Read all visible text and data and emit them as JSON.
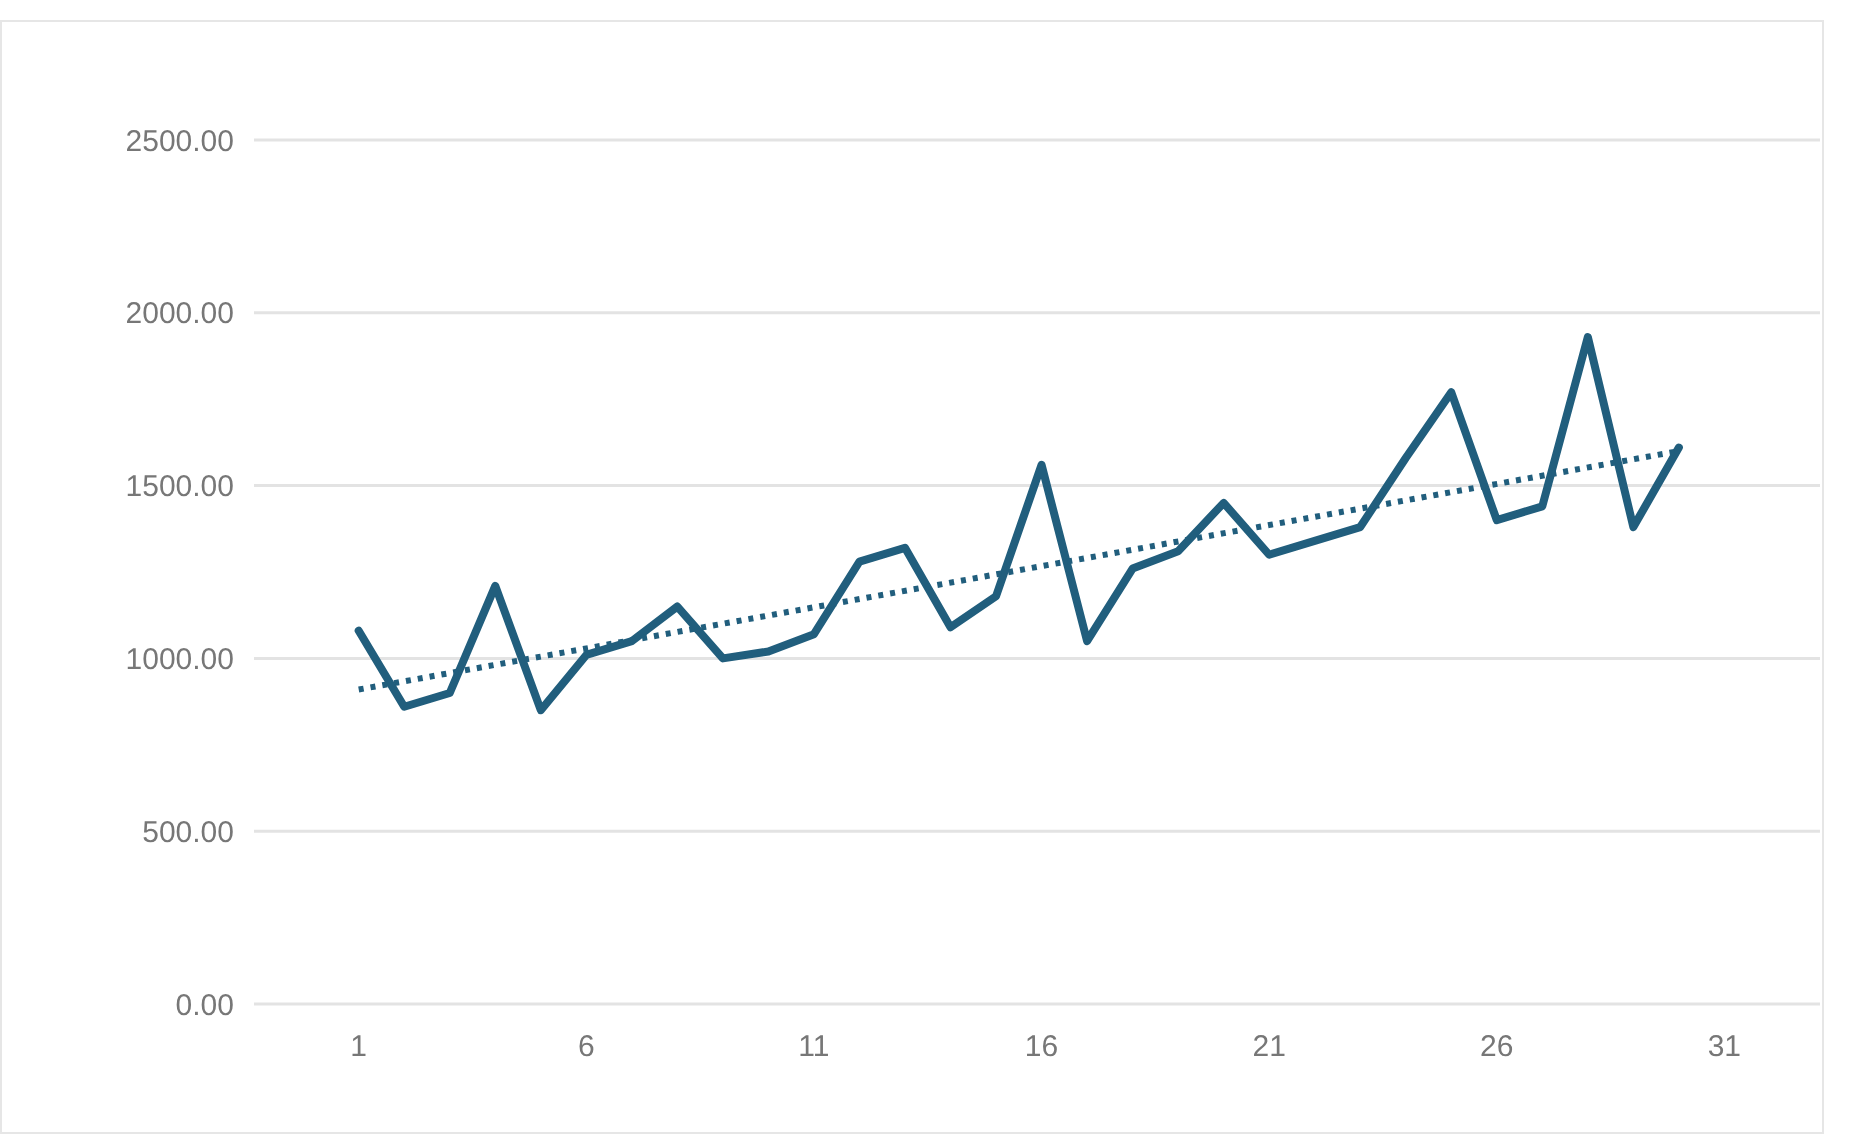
{
  "chart_data": {
    "type": "line",
    "grid": "y",
    "xlim": [
      -1.3,
      33.1
    ],
    "ylim": [
      0,
      2500
    ],
    "xticks": [
      1,
      6,
      11,
      16,
      21,
      26,
      31
    ],
    "yticks": [
      {
        "value": 0,
        "label": "0.00"
      },
      {
        "value": 500,
        "label": "500.00"
      },
      {
        "value": 1000,
        "label": "1000.00"
      },
      {
        "value": 1500,
        "label": "1500.00"
      },
      {
        "value": 2000,
        "label": "2000.00"
      },
      {
        "value": 2500,
        "label": "2500.00"
      }
    ],
    "x": [
      1,
      2,
      3,
      4,
      5,
      6,
      7,
      8,
      9,
      10,
      11,
      12,
      13,
      14,
      15,
      16,
      17,
      18,
      19,
      20,
      21,
      22,
      23,
      24,
      25,
      26,
      27,
      28,
      29,
      30
    ],
    "series": [
      {
        "color": "#215e7d",
        "line_style": "solid",
        "values": [
          1080,
          860,
          900,
          1210,
          850,
          1010,
          1050,
          1150,
          1000,
          1020,
          1070,
          1280,
          1320,
          1090,
          1180,
          1560,
          1050,
          1260,
          1310,
          1450,
          1300,
          1340,
          1380,
          1580,
          1770,
          1400,
          1440,
          1930,
          1380,
          1610
        ]
      },
      {
        "type": "line",
        "color": "#215e7d",
        "line_style": "dotted",
        "x": [
          1,
          30
        ],
        "values": [
          910,
          1600
        ]
      }
    ]
  }
}
